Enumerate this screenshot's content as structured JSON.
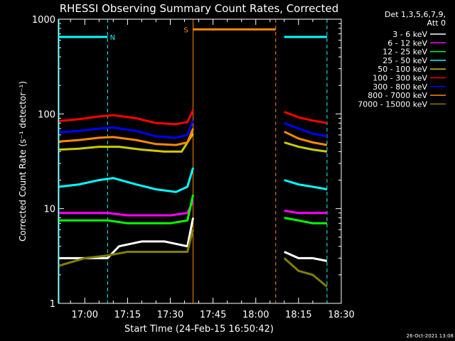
{
  "chart_data": {
    "type": "line",
    "title": "RHESSI Observing Summary Count Rates, Corrected",
    "xlabel": "Start Time (24-Feb-15 16:50:42)",
    "ylabel": "Corrected Count Rate (s⁻¹ detector⁻¹)",
    "yscale": "log",
    "ylim": [
      1,
      1000
    ],
    "xlim": [
      "16:50:42",
      "18:30:00"
    ],
    "yticks": [
      "1",
      "10",
      "100",
      "1000"
    ],
    "xticks": [
      "17:00",
      "17:15",
      "17:30",
      "17:45",
      "18:00",
      "18:15",
      "18:30"
    ],
    "grid": false,
    "legend_position": "top-right",
    "legend_header": [
      "Det 1,3,5,6,7,9,",
      "Att 0"
    ],
    "footer_date": "26-Oct-2021 13:08",
    "gap": {
      "start": "17:38:30",
      "end": "18:09:30"
    },
    "series": [
      {
        "name": "3 - 6 keV",
        "color": "#ffffff",
        "x": [
          "16:51",
          "17:00",
          "17:08",
          "17:12",
          "17:20",
          "17:28",
          "17:36",
          "17:38",
          "18:10",
          "18:15",
          "18:20",
          "18:25"
        ],
        "y": [
          3.0,
          3.0,
          3.0,
          4.0,
          4.5,
          4.5,
          4.0,
          8.0,
          3.5,
          3.0,
          3.0,
          2.8
        ]
      },
      {
        "name": "6 - 12 keV",
        "color": "#ff00ff",
        "x": [
          "16:51",
          "17:00",
          "17:08",
          "17:15",
          "17:22",
          "17:30",
          "17:36",
          "17:38",
          "18:10",
          "18:15",
          "18:20",
          "18:25"
        ],
        "y": [
          9.0,
          9.0,
          9.0,
          8.5,
          8.5,
          8.5,
          9.0,
          12.0,
          9.5,
          9.0,
          9.0,
          9.0
        ]
      },
      {
        "name": "12 - 25 keV",
        "color": "#00ff00",
        "x": [
          "16:51",
          "17:00",
          "17:08",
          "17:15",
          "17:22",
          "17:30",
          "17:36",
          "17:38",
          "18:10",
          "18:15",
          "18:20",
          "18:25"
        ],
        "y": [
          7.5,
          7.5,
          7.5,
          7.0,
          7.0,
          7.0,
          7.5,
          14.0,
          8.0,
          7.5,
          7.0,
          7.0
        ]
      },
      {
        "name": "25 - 50 keV",
        "color": "#00ffff",
        "x": [
          "16:51",
          "16:58",
          "17:05",
          "17:10",
          "17:18",
          "17:25",
          "17:32",
          "17:36",
          "17:38",
          "18:10",
          "18:15",
          "18:20",
          "18:25"
        ],
        "y": [
          17,
          18,
          20,
          21,
          18,
          16,
          15,
          17,
          27,
          20,
          18,
          17,
          16
        ]
      },
      {
        "name": "50 - 100 keV",
        "color": "#cccc00",
        "x": [
          "16:51",
          "16:58",
          "17:05",
          "17:12",
          "17:20",
          "17:28",
          "17:34",
          "17:38",
          "18:10",
          "18:15",
          "18:20",
          "18:25"
        ],
        "y": [
          42,
          43,
          45,
          45,
          42,
          40,
          40,
          62,
          50,
          45,
          42,
          40
        ]
      },
      {
        "name": "100 - 300 keV",
        "color": "#ff0000",
        "x": [
          "16:51",
          "16:58",
          "17:05",
          "17:10",
          "17:18",
          "17:25",
          "17:32",
          "17:36",
          "17:38",
          "18:10",
          "18:15",
          "18:20",
          "18:25"
        ],
        "y": [
          84,
          88,
          94,
          97,
          90,
          80,
          78,
          82,
          110,
          105,
          92,
          85,
          80
        ]
      },
      {
        "name": "300 - 800 keV",
        "color": "#0000ff",
        "x": [
          "16:51",
          "16:58",
          "17:05",
          "17:10",
          "17:18",
          "17:25",
          "17:32",
          "17:36",
          "17:38",
          "18:10",
          "18:15",
          "18:20",
          "18:25"
        ],
        "y": [
          64,
          66,
          70,
          72,
          66,
          58,
          56,
          60,
          85,
          80,
          70,
          62,
          58
        ]
      },
      {
        "name": "800 - 7000 keV",
        "color": "#ff8800",
        "x": [
          "16:51",
          "16:58",
          "17:05",
          "17:10",
          "17:18",
          "17:25",
          "17:32",
          "17:36",
          "17:38",
          "18:10",
          "18:15",
          "18:20",
          "18:25"
        ],
        "y": [
          51,
          53,
          56,
          57,
          53,
          48,
          47,
          50,
          70,
          65,
          55,
          50,
          47
        ]
      },
      {
        "name": "7000 - 15000 keV",
        "color": "#808000",
        "x": [
          "16:51",
          "17:00",
          "17:08",
          "17:15",
          "17:22",
          "17:30",
          "17:36",
          "17:38",
          "18:10",
          "18:15",
          "18:20",
          "18:25"
        ],
        "y": [
          2.5,
          3.0,
          3.2,
          3.5,
          3.5,
          3.5,
          3.5,
          6.0,
          3.0,
          2.2,
          2.0,
          1.5
        ]
      }
    ],
    "markers": [
      {
        "type": "N",
        "label": "N",
        "color": "#00ffff",
        "segments": [
          [
            "16:50:42",
            "17:08"
          ],
          [
            "18:10",
            "18:25"
          ]
        ],
        "y": 650,
        "dashed_lines": [
          "17:08",
          "18:25"
        ]
      },
      {
        "type": "S",
        "label": "S",
        "color": "#ff8800",
        "segments": [
          [
            "17:38",
            "18:07"
          ]
        ],
        "y": 780,
        "dashed_lines": [
          "18:07"
        ],
        "solid_lines": [
          "17:38"
        ]
      }
    ]
  }
}
